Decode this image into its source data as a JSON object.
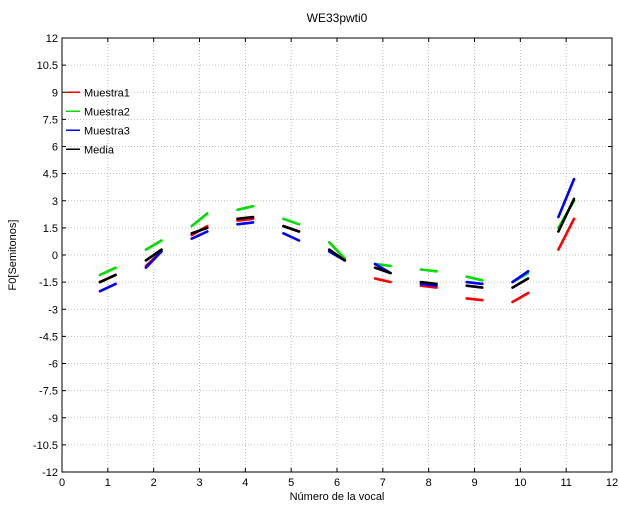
{
  "chart_data": {
    "type": "line",
    "title": "WE33pwti0",
    "xlabel": "Número de la vocal",
    "ylabel": "F0[Semitonos]",
    "xlim": [
      0,
      12
    ],
    "ylim": [
      -12,
      12
    ],
    "xticks": [
      0,
      1,
      2,
      3,
      4,
      5,
      6,
      7,
      8,
      9,
      10,
      11,
      12
    ],
    "yticks": [
      -12,
      -10.5,
      -9,
      -7.5,
      -6,
      -4.5,
      -3,
      -1.5,
      0,
      1.5,
      3,
      4.5,
      6,
      7.5,
      9,
      10.5,
      12
    ],
    "grid": true,
    "legend_position": "top-left",
    "series": [
      {
        "name": "Muestra1",
        "color": "#ff0000",
        "segments": [
          [
            [
              0.83,
              -1.5
            ],
            [
              1.17,
              -1.1
            ]
          ],
          [
            [
              1.83,
              -0.6
            ],
            [
              2.17,
              0.2
            ]
          ],
          [
            [
              2.83,
              1.1
            ],
            [
              3.17,
              1.6
            ]
          ],
          [
            [
              3.83,
              1.9
            ],
            [
              4.17,
              2.0
            ]
          ],
          [
            [
              4.83,
              1.6
            ],
            [
              5.17,
              1.3
            ]
          ],
          [
            [
              5.83,
              0.2
            ],
            [
              6.17,
              -0.3
            ]
          ],
          [
            [
              6.83,
              -1.3
            ],
            [
              7.17,
              -1.5
            ]
          ],
          [
            [
              7.83,
              -1.7
            ],
            [
              8.17,
              -1.8
            ]
          ],
          [
            [
              8.83,
              -2.4
            ],
            [
              9.17,
              -2.5
            ]
          ],
          [
            [
              9.83,
              -2.6
            ],
            [
              10.17,
              -2.1
            ]
          ],
          [
            [
              10.83,
              0.3
            ],
            [
              11.17,
              2.0
            ]
          ]
        ]
      },
      {
        "name": "Muestra2",
        "color": "#00dd00",
        "segments": [
          [
            [
              0.83,
              -1.1
            ],
            [
              1.17,
              -0.7
            ]
          ],
          [
            [
              1.83,
              0.3
            ],
            [
              2.17,
              0.8
            ]
          ],
          [
            [
              2.83,
              1.6
            ],
            [
              3.17,
              2.3
            ]
          ],
          [
            [
              3.83,
              2.5
            ],
            [
              4.17,
              2.7
            ]
          ],
          [
            [
              4.83,
              2.0
            ],
            [
              5.17,
              1.7
            ]
          ],
          [
            [
              5.83,
              0.7
            ],
            [
              6.17,
              -0.2
            ]
          ],
          [
            [
              6.83,
              -0.5
            ],
            [
              7.17,
              -0.6
            ]
          ],
          [
            [
              7.83,
              -0.8
            ],
            [
              8.17,
              -0.9
            ]
          ],
          [
            [
              8.83,
              -1.2
            ],
            [
              9.17,
              -1.4
            ]
          ],
          [
            [
              9.83,
              -1.5
            ],
            [
              10.17,
              -1.0
            ]
          ],
          [
            [
              10.83,
              1.5
            ],
            [
              11.17,
              3.0
            ]
          ]
        ]
      },
      {
        "name": "Muestra3",
        "color": "#0000ff",
        "segments": [
          [
            [
              0.83,
              -2.0
            ],
            [
              1.17,
              -1.6
            ]
          ],
          [
            [
              1.83,
              -0.7
            ],
            [
              2.17,
              0.2
            ]
          ],
          [
            [
              2.83,
              0.9
            ],
            [
              3.17,
              1.3
            ]
          ],
          [
            [
              3.83,
              1.7
            ],
            [
              4.17,
              1.8
            ]
          ],
          [
            [
              4.83,
              1.2
            ],
            [
              5.17,
              0.8
            ]
          ],
          [
            [
              5.83,
              0.2
            ],
            [
              6.17,
              -0.3
            ]
          ],
          [
            [
              6.83,
              -0.5
            ],
            [
              7.17,
              -1.0
            ]
          ],
          [
            [
              7.83,
              -1.6
            ],
            [
              8.17,
              -1.7
            ]
          ],
          [
            [
              8.83,
              -1.5
            ],
            [
              9.17,
              -1.6
            ]
          ],
          [
            [
              9.83,
              -1.5
            ],
            [
              10.17,
              -0.9
            ]
          ],
          [
            [
              10.83,
              2.1
            ],
            [
              11.17,
              4.2
            ]
          ]
        ]
      },
      {
        "name": "Media",
        "color": "#000000",
        "segments": [
          [
            [
              0.83,
              -1.5
            ],
            [
              1.17,
              -1.1
            ]
          ],
          [
            [
              1.83,
              -0.3
            ],
            [
              2.17,
              0.3
            ]
          ],
          [
            [
              2.83,
              1.2
            ],
            [
              3.17,
              1.5
            ]
          ],
          [
            [
              3.83,
              2.0
            ],
            [
              4.17,
              2.1
            ]
          ],
          [
            [
              4.83,
              1.6
            ],
            [
              5.17,
              1.3
            ]
          ],
          [
            [
              5.83,
              0.3
            ],
            [
              6.17,
              -0.3
            ]
          ],
          [
            [
              6.83,
              -0.7
            ],
            [
              7.17,
              -1.0
            ]
          ],
          [
            [
              7.83,
              -1.5
            ],
            [
              8.17,
              -1.6
            ]
          ],
          [
            [
              8.83,
              -1.7
            ],
            [
              9.17,
              -1.8
            ]
          ],
          [
            [
              9.83,
              -1.8
            ],
            [
              10.17,
              -1.3
            ]
          ],
          [
            [
              10.83,
              1.3
            ],
            [
              11.17,
              3.1
            ]
          ]
        ]
      }
    ]
  }
}
